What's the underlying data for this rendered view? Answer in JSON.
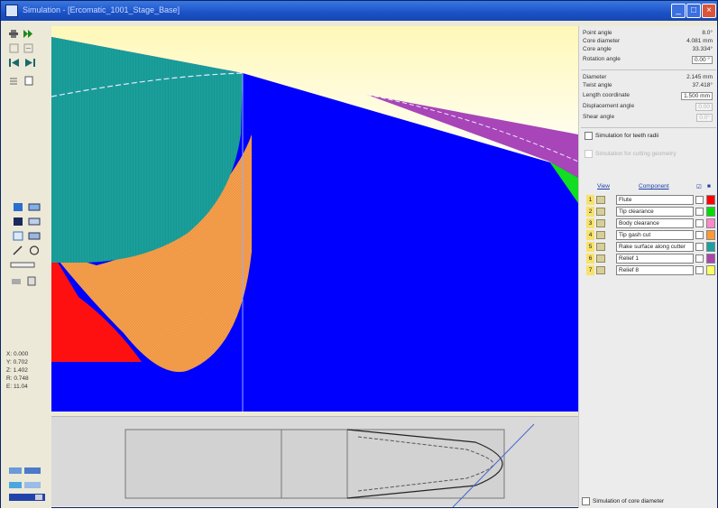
{
  "window": {
    "title": "Simulation - [Ercomatic_1001_Stage_Base]"
  },
  "coords": [
    {
      "label": "X",
      "value": "0.000"
    },
    {
      "label": "Y",
      "value": "0.702"
    },
    {
      "label": "Z",
      "value": "1.402"
    },
    {
      "label": "R",
      "value": "0.748"
    },
    {
      "label": "E",
      "value": "11.04"
    }
  ],
  "props": {
    "point_angle": {
      "label": "Point angle",
      "value": "8.0°"
    },
    "core_diameter": {
      "label": "Core diameter",
      "value": "4.081 mm"
    },
    "core_angle": {
      "label": "Core angle",
      "value": "33.334°"
    },
    "rotation_angle": {
      "label": "Rotation angle",
      "value": "0.00 °"
    },
    "diameter": {
      "label": "Diameter",
      "value": "2.145 mm"
    },
    "twist_angle": {
      "label": "Twist angle",
      "value": "37.418°"
    },
    "length_coordinate": {
      "label": "Length coordinate",
      "value": "1.500 mm"
    },
    "displacement_angle": {
      "label": "Displacement angle",
      "value": "0.00"
    },
    "shear_angle": {
      "label": "Shear angle",
      "value": "0.0°"
    }
  },
  "checks": {
    "sim_teeth": "Simulation for teeth radii",
    "sim_cutting": "Simulation for cutting geometry",
    "sim_core": "Simulation of core diameter"
  },
  "components_header": {
    "view": "View",
    "component": "Component"
  },
  "components": [
    {
      "num": "1",
      "name": "Flute",
      "color": "#ff0000"
    },
    {
      "num": "2",
      "name": "Tip clearance",
      "color": "#00dd00"
    },
    {
      "num": "3",
      "name": "Body clearance",
      "color": "#ff88cc"
    },
    {
      "num": "4",
      "name": "Tip gash cut",
      "color": "#ff9933"
    },
    {
      "num": "5",
      "name": "Rake surface along cutter",
      "color": "#1aa0a0"
    },
    {
      "num": "6",
      "name": "Relief 1",
      "color": "#aa44aa"
    },
    {
      "num": "7",
      "name": "Relief 8",
      "color": "#ffff66"
    }
  ],
  "icons": {
    "app": "window-app-icon",
    "minimize": "minimize-icon",
    "maximize": "maximize-icon",
    "close": "close-icon"
  },
  "colors": {
    "background_blue": "#0000ff",
    "flute_red": "#ff0000",
    "tip_gash_orange": "#ff9933",
    "rake_teal": "#1aa0a0",
    "relief_purple": "#aa44aa",
    "tip_clearance_green": "#00dd00"
  }
}
